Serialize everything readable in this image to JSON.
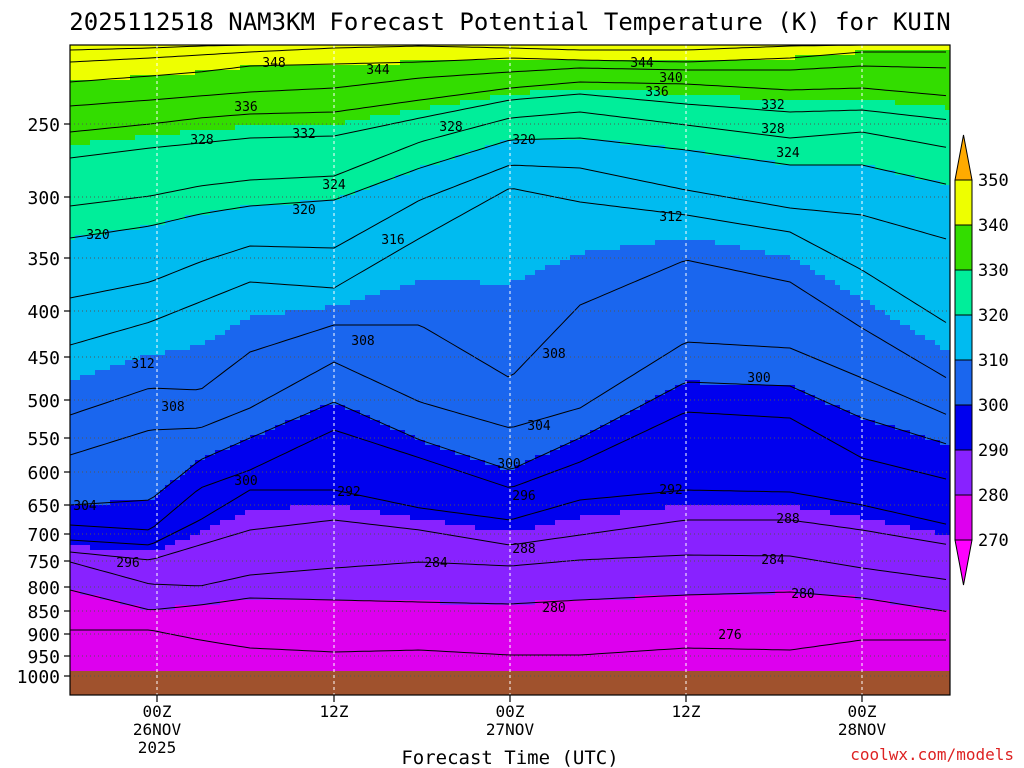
{
  "chart_data": {
    "type": "heatmap",
    "title": "2025112518 NAM3KM Forecast Potential Temperature (K) for KUIN",
    "xlabel": "Forecast Time (UTC)",
    "ylabel": "",
    "credit": "coolwx.com/models",
    "x_ticks": [
      {
        "lines": [
          "00Z",
          "26NOV",
          "2025"
        ]
      },
      {
        "lines": [
          "12Z"
        ]
      },
      {
        "lines": [
          "00Z",
          "27NOV"
        ]
      },
      {
        "lines": [
          "12Z"
        ]
      },
      {
        "lines": [
          "00Z",
          "28NOV"
        ]
      }
    ],
    "y_ticks": [
      250,
      300,
      350,
      400,
      450,
      500,
      550,
      600,
      650,
      700,
      750,
      800,
      850,
      900,
      950,
      1000
    ],
    "y_scale": "log-pressure (inverted)",
    "grid": true,
    "colorbar": {
      "levels": [
        270,
        280,
        290,
        300,
        310,
        320,
        330,
        340,
        350
      ],
      "colors": [
        "#ff00ff",
        "#dd00ee",
        "#8822ff",
        "#0000ee",
        "#1a66ee",
        "#00bbf0",
        "#00ee9a",
        "#33dd00",
        "#eeff00",
        "#ffaa00"
      ],
      "extend": "both"
    },
    "contour_labels": [
      {
        "text": "348"
      },
      {
        "text": "344"
      },
      {
        "text": "344"
      },
      {
        "text": "340"
      },
      {
        "text": "336"
      },
      {
        "text": "336"
      },
      {
        "text": "332"
      },
      {
        "text": "332"
      },
      {
        "text": "328"
      },
      {
        "text": "328"
      },
      {
        "text": "328"
      },
      {
        "text": "324"
      },
      {
        "text": "324"
      },
      {
        "text": "320"
      },
      {
        "text": "320"
      },
      {
        "text": "320"
      },
      {
        "text": "316"
      },
      {
        "text": "312"
      },
      {
        "text": "312"
      },
      {
        "text": "308"
      },
      {
        "text": "308"
      },
      {
        "text": "308"
      },
      {
        "text": "304"
      },
      {
        "text": "304"
      },
      {
        "text": "300"
      },
      {
        "text": "300"
      },
      {
        "text": "300"
      },
      {
        "text": "296"
      },
      {
        "text": "296"
      },
      {
        "text": "292"
      },
      {
        "text": "292"
      },
      {
        "text": "288"
      },
      {
        "text": "288"
      },
      {
        "text": "284"
      },
      {
        "text": "284"
      },
      {
        "text": "280"
      },
      {
        "text": "280"
      },
      {
        "text": "276"
      }
    ]
  }
}
